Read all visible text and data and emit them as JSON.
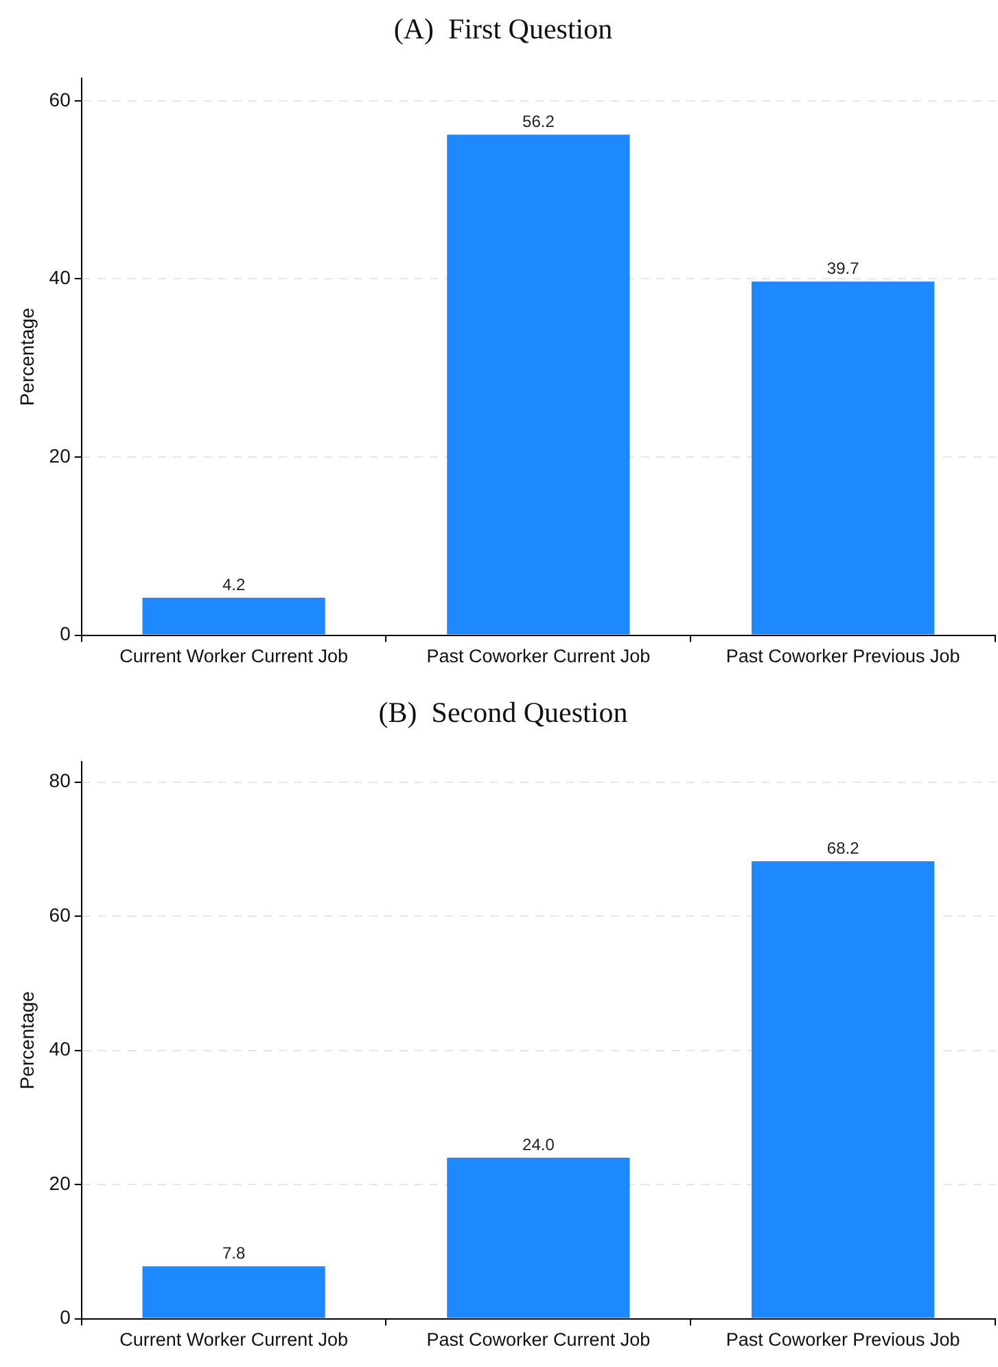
{
  "chart_data": [
    {
      "type": "bar",
      "title": "(A)  First Question",
      "ylabel": "Percentage",
      "categories": [
        "Current Worker Current Job",
        "Past Coworker Current Job",
        "Past Coworker Previous Job"
      ],
      "values": [
        4.2,
        56.2,
        39.7
      ],
      "value_labels": [
        "4.2",
        "56.2",
        "39.7"
      ],
      "color": "#1e88ff",
      "ylim": [
        0,
        62.5
      ],
      "yticks": [
        0,
        20,
        40,
        60
      ],
      "grid": "y",
      "legend": false
    },
    {
      "type": "bar",
      "title": "(B)  Second Question",
      "ylabel": "Percentage",
      "categories": [
        "Current Worker Current Job",
        "Past Coworker Current Job",
        "Past Coworker Previous Job"
      ],
      "values": [
        7.8,
        24.0,
        68.2
      ],
      "value_labels": [
        "7.8",
        "24.0",
        "68.2"
      ],
      "color": "#1e88ff",
      "ylim": [
        0,
        83
      ],
      "yticks": [
        0,
        20,
        40,
        60,
        80
      ],
      "grid": "y",
      "legend": false
    }
  ]
}
